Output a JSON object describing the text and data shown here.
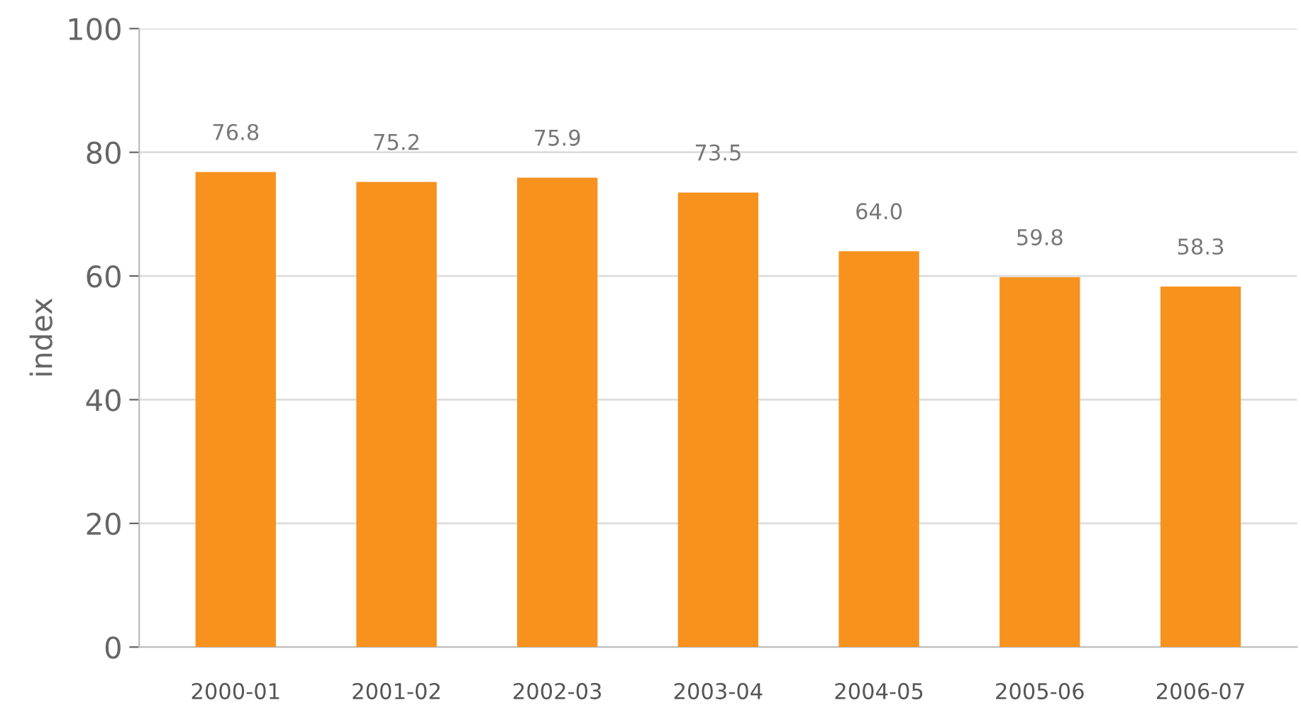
{
  "chart_data": {
    "type": "bar",
    "ylabel": "index",
    "categories": [
      "2000-01",
      "2001-02",
      "2002-03",
      "2003-04",
      "2004-05",
      "2005-06",
      "2006-07"
    ],
    "values": [
      76.8,
      75.2,
      75.9,
      73.5,
      64.0,
      59.8,
      58.3
    ],
    "color": "#f7921e",
    "ylim": [
      0,
      100
    ],
    "yticks": [
      0,
      20,
      40,
      60,
      80,
      100
    ],
    "grid": "y",
    "value_labels": [
      "76.8",
      "75.2",
      "75.9",
      "73.5",
      "64.0",
      "59.8",
      "58.3"
    ]
  }
}
